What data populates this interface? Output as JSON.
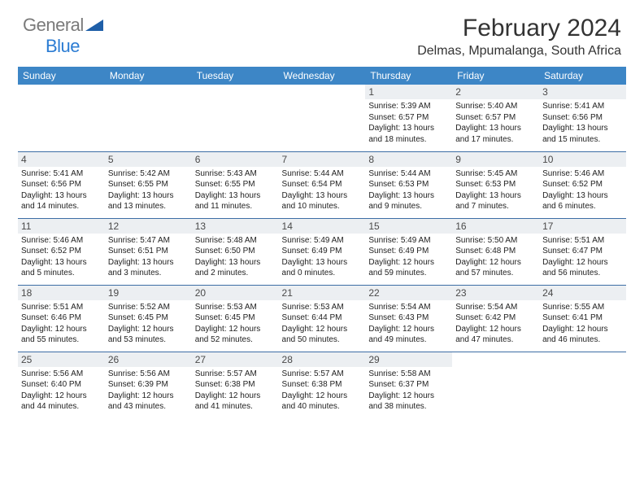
{
  "logo": {
    "general": "General",
    "blue": "Blue"
  },
  "title": "February 2024",
  "location": "Delmas, Mpumalanga, South Africa",
  "header_bg": "#3d86c6",
  "border_color": "#3d6ea5",
  "daynum_bg": "#eceff2",
  "columns": [
    "Sunday",
    "Monday",
    "Tuesday",
    "Wednesday",
    "Thursday",
    "Friday",
    "Saturday"
  ],
  "weeks": [
    [
      null,
      null,
      null,
      null,
      {
        "d": "1",
        "sr": "5:39 AM",
        "ss": "6:57 PM",
        "dl1": "Daylight: 13 hours",
        "dl2": "and 18 minutes."
      },
      {
        "d": "2",
        "sr": "5:40 AM",
        "ss": "6:57 PM",
        "dl1": "Daylight: 13 hours",
        "dl2": "and 17 minutes."
      },
      {
        "d": "3",
        "sr": "5:41 AM",
        "ss": "6:56 PM",
        "dl1": "Daylight: 13 hours",
        "dl2": "and 15 minutes."
      }
    ],
    [
      {
        "d": "4",
        "sr": "5:41 AM",
        "ss": "6:56 PM",
        "dl1": "Daylight: 13 hours",
        "dl2": "and 14 minutes."
      },
      {
        "d": "5",
        "sr": "5:42 AM",
        "ss": "6:55 PM",
        "dl1": "Daylight: 13 hours",
        "dl2": "and 13 minutes."
      },
      {
        "d": "6",
        "sr": "5:43 AM",
        "ss": "6:55 PM",
        "dl1": "Daylight: 13 hours",
        "dl2": "and 11 minutes."
      },
      {
        "d": "7",
        "sr": "5:44 AM",
        "ss": "6:54 PM",
        "dl1": "Daylight: 13 hours",
        "dl2": "and 10 minutes."
      },
      {
        "d": "8",
        "sr": "5:44 AM",
        "ss": "6:53 PM",
        "dl1": "Daylight: 13 hours",
        "dl2": "and 9 minutes."
      },
      {
        "d": "9",
        "sr": "5:45 AM",
        "ss": "6:53 PM",
        "dl1": "Daylight: 13 hours",
        "dl2": "and 7 minutes."
      },
      {
        "d": "10",
        "sr": "5:46 AM",
        "ss": "6:52 PM",
        "dl1": "Daylight: 13 hours",
        "dl2": "and 6 minutes."
      }
    ],
    [
      {
        "d": "11",
        "sr": "5:46 AM",
        "ss": "6:52 PM",
        "dl1": "Daylight: 13 hours",
        "dl2": "and 5 minutes."
      },
      {
        "d": "12",
        "sr": "5:47 AM",
        "ss": "6:51 PM",
        "dl1": "Daylight: 13 hours",
        "dl2": "and 3 minutes."
      },
      {
        "d": "13",
        "sr": "5:48 AM",
        "ss": "6:50 PM",
        "dl1": "Daylight: 13 hours",
        "dl2": "and 2 minutes."
      },
      {
        "d": "14",
        "sr": "5:49 AM",
        "ss": "6:49 PM",
        "dl1": "Daylight: 13 hours",
        "dl2": "and 0 minutes."
      },
      {
        "d": "15",
        "sr": "5:49 AM",
        "ss": "6:49 PM",
        "dl1": "Daylight: 12 hours",
        "dl2": "and 59 minutes."
      },
      {
        "d": "16",
        "sr": "5:50 AM",
        "ss": "6:48 PM",
        "dl1": "Daylight: 12 hours",
        "dl2": "and 57 minutes."
      },
      {
        "d": "17",
        "sr": "5:51 AM",
        "ss": "6:47 PM",
        "dl1": "Daylight: 12 hours",
        "dl2": "and 56 minutes."
      }
    ],
    [
      {
        "d": "18",
        "sr": "5:51 AM",
        "ss": "6:46 PM",
        "dl1": "Daylight: 12 hours",
        "dl2": "and 55 minutes."
      },
      {
        "d": "19",
        "sr": "5:52 AM",
        "ss": "6:45 PM",
        "dl1": "Daylight: 12 hours",
        "dl2": "and 53 minutes."
      },
      {
        "d": "20",
        "sr": "5:53 AM",
        "ss": "6:45 PM",
        "dl1": "Daylight: 12 hours",
        "dl2": "and 52 minutes."
      },
      {
        "d": "21",
        "sr": "5:53 AM",
        "ss": "6:44 PM",
        "dl1": "Daylight: 12 hours",
        "dl2": "and 50 minutes."
      },
      {
        "d": "22",
        "sr": "5:54 AM",
        "ss": "6:43 PM",
        "dl1": "Daylight: 12 hours",
        "dl2": "and 49 minutes."
      },
      {
        "d": "23",
        "sr": "5:54 AM",
        "ss": "6:42 PM",
        "dl1": "Daylight: 12 hours",
        "dl2": "and 47 minutes."
      },
      {
        "d": "24",
        "sr": "5:55 AM",
        "ss": "6:41 PM",
        "dl1": "Daylight: 12 hours",
        "dl2": "and 46 minutes."
      }
    ],
    [
      {
        "d": "25",
        "sr": "5:56 AM",
        "ss": "6:40 PM",
        "dl1": "Daylight: 12 hours",
        "dl2": "and 44 minutes."
      },
      {
        "d": "26",
        "sr": "5:56 AM",
        "ss": "6:39 PM",
        "dl1": "Daylight: 12 hours",
        "dl2": "and 43 minutes."
      },
      {
        "d": "27",
        "sr": "5:57 AM",
        "ss": "6:38 PM",
        "dl1": "Daylight: 12 hours",
        "dl2": "and 41 minutes."
      },
      {
        "d": "28",
        "sr": "5:57 AM",
        "ss": "6:38 PM",
        "dl1": "Daylight: 12 hours",
        "dl2": "and 40 minutes."
      },
      {
        "d": "29",
        "sr": "5:58 AM",
        "ss": "6:37 PM",
        "dl1": "Daylight: 12 hours",
        "dl2": "and 38 minutes."
      },
      null,
      null
    ]
  ],
  "labels": {
    "sunrise": "Sunrise: ",
    "sunset": "Sunset: "
  }
}
